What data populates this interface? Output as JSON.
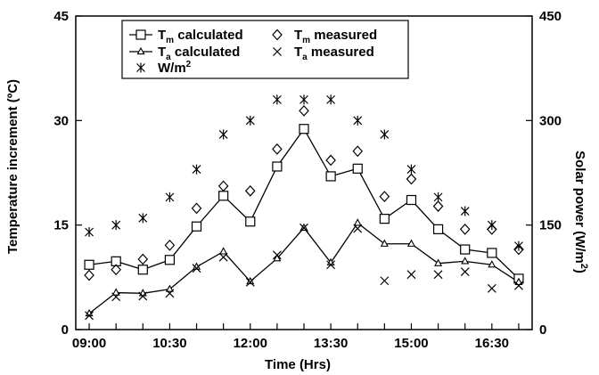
{
  "chart_data": {
    "type": "line",
    "xlabel": "Time (Hrs)",
    "ylabel_left": "Temperature increment (ºC)",
    "ylabel_right": "Solar power (W/m",
    "ylabel_right_sup": "2",
    "ylabel_right_suffix": ")",
    "xlim": [
      "08:45",
      "17:15"
    ],
    "ylim_left": [
      0,
      45
    ],
    "ylim_right": [
      0,
      450
    ],
    "x_ticks": [
      "09:00",
      "10:30",
      "12:00",
      "13:30",
      "15:00",
      "16:30"
    ],
    "y_ticks_left": [
      "0",
      "15",
      "30",
      "45"
    ],
    "y_ticks_right": [
      "0",
      "150",
      "300",
      "450"
    ],
    "legend_position": "top-left",
    "x": [
      "09:00",
      "09:30",
      "10:00",
      "10:30",
      "11:00",
      "11:30",
      "12:00",
      "12:30",
      "13:00",
      "13:30",
      "14:00",
      "14:30",
      "15:00",
      "15:30",
      "16:00",
      "16:30",
      "17:00"
    ],
    "series": [
      {
        "name": "T_m calculated",
        "legend_main": "T",
        "legend_sub": "m",
        "legend_rest": " calculated",
        "marker": "square",
        "line": true,
        "axis": "left",
        "values": [
          9.3,
          9.8,
          8.6,
          10.0,
          14.8,
          19.2,
          15.5,
          23.4,
          28.8,
          22.0,
          23.1,
          15.9,
          18.6,
          14.4,
          11.5,
          11.0,
          7.3
        ]
      },
      {
        "name": "T_m measured",
        "legend_main": "T",
        "legend_sub": "m",
        "legend_rest": " measured",
        "marker": "diamond",
        "line": false,
        "axis": "left",
        "values": [
          7.8,
          8.6,
          10.1,
          12.1,
          17.4,
          20.6,
          19.9,
          25.9,
          31.4,
          24.3,
          25.6,
          19.1,
          21.6,
          17.7,
          14.4,
          14.4,
          11.5
        ]
      },
      {
        "name": "T_a calculated",
        "legend_main": "T",
        "legend_sub": "a",
        "legend_rest": " calculated",
        "marker": "triangle",
        "line": true,
        "axis": "left",
        "values": [
          2.3,
          5.3,
          5.2,
          5.8,
          9.0,
          11.2,
          6.9,
          10.2,
          14.6,
          9.6,
          15.3,
          12.3,
          12.3,
          9.5,
          9.8,
          9.3,
          6.8
        ]
      },
      {
        "name": "T_a measured",
        "legend_main": "T",
        "legend_sub": "a",
        "legend_rest": " measured",
        "marker": "x",
        "line": false,
        "axis": "left",
        "values": [
          2.0,
          4.7,
          4.8,
          5.2,
          8.8,
          10.4,
          6.8,
          10.7,
          14.6,
          9.3,
          14.5,
          7.0,
          7.9,
          7.9,
          8.3,
          5.9,
          6.3
        ]
      },
      {
        "name": "W/m2",
        "legend_main": "W/m",
        "legend_sup": "2",
        "legend_rest": "",
        "marker": "asterisk",
        "line": false,
        "axis": "right",
        "values": [
          140,
          150,
          160,
          190,
          230,
          280,
          300,
          330,
          330,
          330,
          300,
          280,
          230,
          190,
          170,
          150,
          120
        ]
      }
    ]
  }
}
